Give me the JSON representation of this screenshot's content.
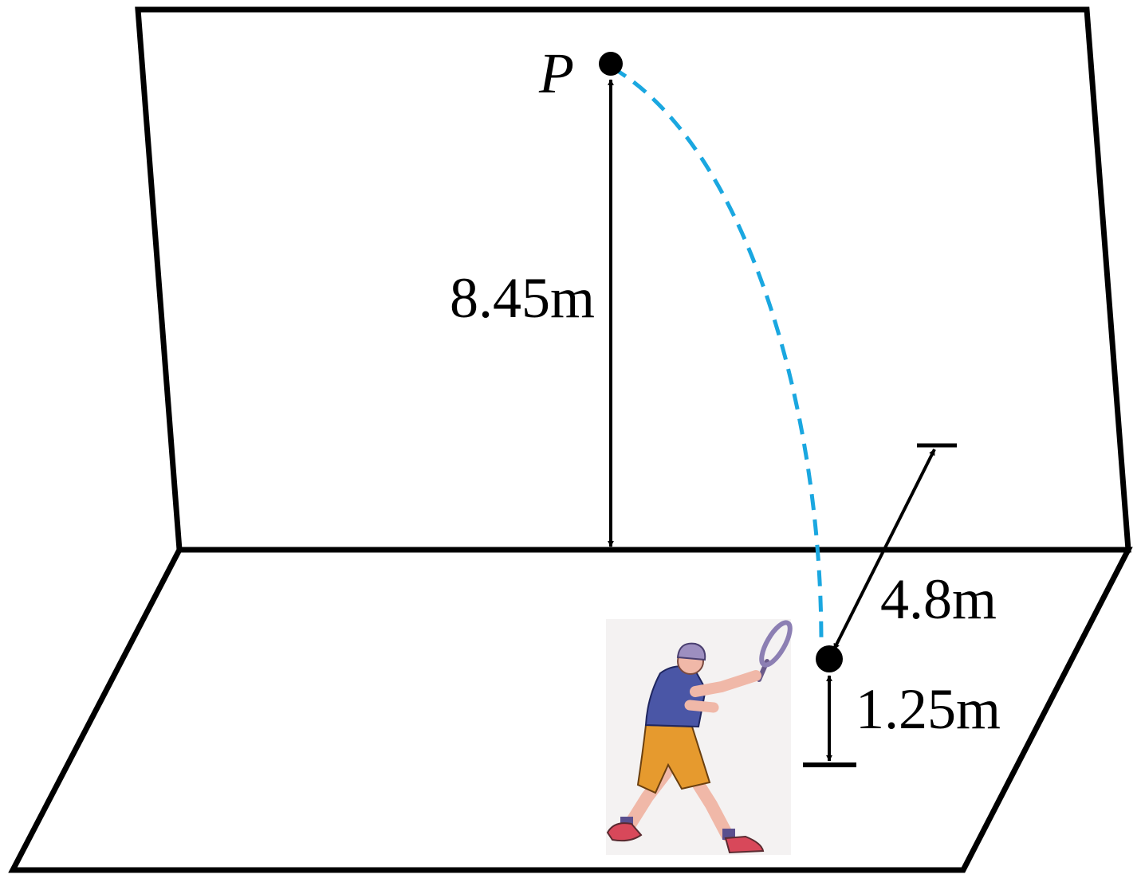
{
  "labels": {
    "point": "P",
    "wall_height": "8.45m",
    "wall_distance": "4.8m",
    "hit_height": "1.25m"
  },
  "colors": {
    "outline": "#000000",
    "trajectory": "#1aa7e0",
    "player_backdrop": "#f4f2f2",
    "shirt": "#4a56a6",
    "shorts": "#e69a2e",
    "skin": "#f0b8a8",
    "cap": "#9d8fc0",
    "shoes": "#d8485a"
  },
  "icons": {
    "player": "tennis-player-illustration"
  }
}
